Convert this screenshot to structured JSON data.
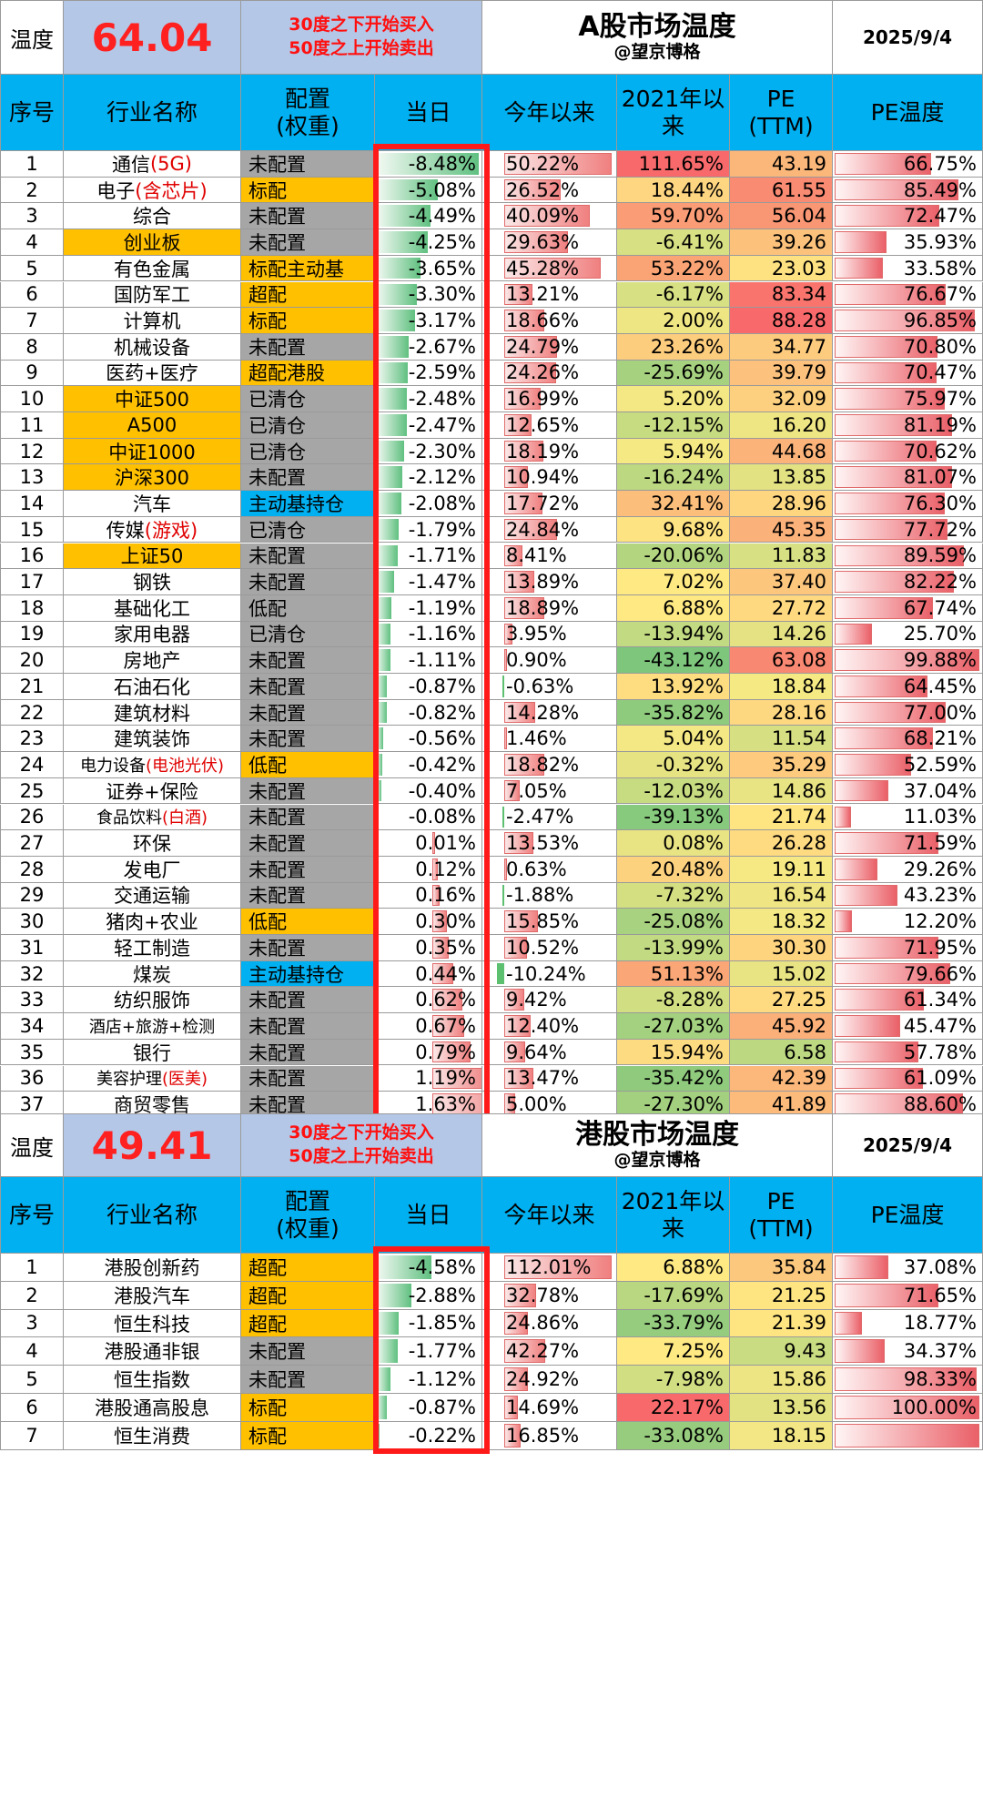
{
  "a_share": {
    "temp_label": "温度",
    "temp_value": "64.04",
    "note_line1": "30度之下开始买入",
    "note_line2": "50度之上开始卖出",
    "title": "A股市场温度",
    "subtitle": "@望京博格",
    "date": "2025/9/4",
    "headers": [
      "序号",
      "行业名称",
      "配置\n(权重)",
      "当日",
      "今年以来",
      "2021年以来",
      "PE\n(TTM)",
      "PE温度"
    ],
    "rows": [
      {
        "no": "1",
        "name": "通信",
        "name_red": "(5G)",
        "name_bg": "",
        "cfg": "未配置",
        "cfg_bg": "gray",
        "day": "-8.48%",
        "day_v": -8.48,
        "ytd": "50.22%",
        "ytd_v": 50.22,
        "since": "111.65%",
        "since_bg": "#f8696b",
        "pe": "43.19",
        "pe_bg": "#fbb77a",
        "pet": "66.75%",
        "pet_v": 66.75
      },
      {
        "no": "2",
        "name": "电子",
        "name_red": "(含芯片)",
        "name_bg": "",
        "cfg": "标配",
        "cfg_bg": "orange",
        "day": "-5.08%",
        "day_v": -5.08,
        "ytd": "26.52%",
        "ytd_v": 26.52,
        "since": "18.44%",
        "since_bg": "#fed580",
        "pe": "61.55",
        "pe_bg": "#f98b73",
        "pet": "85.49%",
        "pet_v": 85.49
      },
      {
        "no": "3",
        "name": "综合",
        "name_red": "",
        "name_bg": "",
        "cfg": "未配置",
        "cfg_bg": "gray",
        "day": "-4.49%",
        "day_v": -4.49,
        "ytd": "40.09%",
        "ytd_v": 40.09,
        "since": "59.70%",
        "since_bg": "#fa9c75",
        "pe": "56.04",
        "pe_bg": "#f99673",
        "pet": "72.47%",
        "pet_v": 72.47
      },
      {
        "no": "4",
        "name": "创业板",
        "name_red": "",
        "name_bg": "orange",
        "cfg": "未配置",
        "cfg_bg": "gray",
        "day": "-4.25%",
        "day_v": -4.25,
        "ytd": "29.63%",
        "ytd_v": 29.63,
        "since": "-6.41%",
        "since_bg": "#d7e082",
        "pe": "39.26",
        "pe_bg": "#fcc27c",
        "pet": "35.93%",
        "pet_v": 35.93
      },
      {
        "no": "5",
        "name": "有色金属",
        "name_red": "",
        "name_bg": "",
        "cfg": "标配主动基",
        "cfg_bg": "orange",
        "day": "-3.65%",
        "day_v": -3.65,
        "ytd": "45.28%",
        "ytd_v": 45.28,
        "since": "53.22%",
        "since_bg": "#faa476",
        "pe": "23.03",
        "pe_bg": "#fee282",
        "pet": "33.58%",
        "pet_v": 33.58
      },
      {
        "no": "6",
        "name": "国防军工",
        "name_red": "",
        "name_bg": "",
        "cfg": "超配",
        "cfg_bg": "orange",
        "day": "-3.30%",
        "day_v": -3.3,
        "ytd": "13.21%",
        "ytd_v": 13.21,
        "since": "-6.17%",
        "since_bg": "#d7e082",
        "pe": "83.34",
        "pe_bg": "#f8746d",
        "pet": "76.67%",
        "pet_v": 76.67
      },
      {
        "no": "7",
        "name": "计算机",
        "name_red": "",
        "name_bg": "",
        "cfg": "标配",
        "cfg_bg": "orange",
        "day": "-3.17%",
        "day_v": -3.17,
        "ytd": "18.66%",
        "ytd_v": 18.66,
        "since": "2.00%",
        "since_bg": "#eee583",
        "pe": "88.28",
        "pe_bg": "#f8696b",
        "pet": "96.85%",
        "pet_v": 96.85
      },
      {
        "no": "8",
        "name": "机械设备",
        "name_red": "",
        "name_bg": "",
        "cfg": "未配置",
        "cfg_bg": "gray",
        "day": "-2.67%",
        "day_v": -2.67,
        "ytd": "24.79%",
        "ytd_v": 24.79,
        "since": "23.26%",
        "since_bg": "#fdcd7e",
        "pe": "34.77",
        "pe_bg": "#fdcb7e",
        "pet": "70.80%",
        "pet_v": 70.8
      },
      {
        "no": "9",
        "name": "医药+医疗",
        "name_red": "",
        "name_bg": "",
        "cfg": "超配港股",
        "cfg_bg": "orange",
        "day": "-2.59%",
        "day_v": -2.59,
        "ytd": "24.26%",
        "ytd_v": 24.26,
        "since": "-25.69%",
        "since_bg": "#a6d27f",
        "pe": "39.79",
        "pe_bg": "#fcc17c",
        "pet": "70.47%",
        "pet_v": 70.47
      },
      {
        "no": "10",
        "name": "中证500",
        "name_red": "",
        "name_bg": "orange",
        "cfg": "已清仓",
        "cfg_bg": "gray",
        "day": "-2.48%",
        "day_v": -2.48,
        "ytd": "16.99%",
        "ytd_v": 16.99,
        "since": "5.20%",
        "since_bg": "#f4e884",
        "pe": "32.09",
        "pe_bg": "#fdd07f",
        "pet": "75.97%",
        "pet_v": 75.97
      },
      {
        "no": "11",
        "name": "A500",
        "name_red": "",
        "name_bg": "orange",
        "cfg": "已清仓",
        "cfg_bg": "gray",
        "day": "-2.47%",
        "day_v": -2.47,
        "ytd": "12.65%",
        "ytd_v": 12.65,
        "since": "-12.15%",
        "since_bg": "#c7db81",
        "pe": "16.20",
        "pe_bg": "#eee583",
        "pet": "81.19%",
        "pet_v": 81.19
      },
      {
        "no": "12",
        "name": "中证1000",
        "name_red": "",
        "name_bg": "orange",
        "cfg": "已清仓",
        "cfg_bg": "gray",
        "day": "-2.30%",
        "day_v": -2.3,
        "ytd": "18.19%",
        "ytd_v": 18.19,
        "since": "5.94%",
        "since_bg": "#f5e984",
        "pe": "44.68",
        "pe_bg": "#fbb37a",
        "pet": "70.62%",
        "pet_v": 70.62
      },
      {
        "no": "13",
        "name": "沪深300",
        "name_red": "",
        "name_bg": "orange",
        "cfg": "未配置",
        "cfg_bg": "gray",
        "day": "-2.12%",
        "day_v": -2.12,
        "ytd": "10.94%",
        "ytd_v": 10.94,
        "since": "-16.24%",
        "since_bg": "#bcd881",
        "pe": "13.85",
        "pe_bg": "#e3e283",
        "pet": "81.07%",
        "pet_v": 81.07
      },
      {
        "no": "14",
        "name": "汽车",
        "name_red": "",
        "name_bg": "",
        "cfg": "主动基持仓",
        "cfg_bg": "blue",
        "day": "-2.08%",
        "day_v": -2.08,
        "ytd": "17.72%",
        "ytd_v": 17.72,
        "since": "32.41%",
        "since_bg": "#fcbf7b",
        "pe": "28.96",
        "pe_bg": "#fed680",
        "pet": "76.30%",
        "pet_v": 76.3
      },
      {
        "no": "15",
        "name": "传媒",
        "name_red": "(游戏)",
        "name_bg": "",
        "cfg": "已清仓",
        "cfg_bg": "gray",
        "day": "-1.79%",
        "day_v": -1.79,
        "ytd": "24.84%",
        "ytd_v": 24.84,
        "since": "9.68%",
        "since_bg": "#fee382",
        "pe": "45.35",
        "pe_bg": "#fbb17a",
        "pet": "77.72%",
        "pet_v": 77.72
      },
      {
        "no": "16",
        "name": "上证50",
        "name_red": "",
        "name_bg": "orange",
        "cfg": "未配置",
        "cfg_bg": "gray",
        "day": "-1.71%",
        "day_v": -1.71,
        "ytd": "8.41%",
        "ytd_v": 8.41,
        "since": "-20.06%",
        "since_bg": "#b3d580",
        "pe": "11.83",
        "pe_bg": "#d7e082",
        "pet": "89.59%",
        "pet_v": 89.59
      },
      {
        "no": "17",
        "name": "钢铁",
        "name_red": "",
        "name_bg": "",
        "cfg": "未配置",
        "cfg_bg": "gray",
        "day": "-1.47%",
        "day_v": -1.47,
        "ytd": "13.89%",
        "ytd_v": 13.89,
        "since": "7.02%",
        "since_bg": "#fee983",
        "pe": "37.40",
        "pe_bg": "#fcc67d",
        "pet": "82.22%",
        "pet_v": 82.22
      },
      {
        "no": "18",
        "name": "基础化工",
        "name_red": "",
        "name_bg": "",
        "cfg": "低配",
        "cfg_bg": "gray",
        "day": "-1.19%",
        "day_v": -1.19,
        "ytd": "18.89%",
        "ytd_v": 18.89,
        "since": "6.88%",
        "since_bg": "#fee983",
        "pe": "27.72",
        "pe_bg": "#fed980",
        "pet": "67.74%",
        "pet_v": 67.74
      },
      {
        "no": "19",
        "name": "家用电器",
        "name_red": "",
        "name_bg": "",
        "cfg": "已清仓",
        "cfg_bg": "gray",
        "day": "-1.16%",
        "day_v": -1.16,
        "ytd": "3.95%",
        "ytd_v": 3.95,
        "since": "-13.94%",
        "since_bg": "#c2da81",
        "pe": "14.26",
        "pe_bg": "#e5e283",
        "pet": "25.70%",
        "pet_v": 25.7
      },
      {
        "no": "20",
        "name": "房地产",
        "name_red": "",
        "name_bg": "",
        "cfg": "未配置",
        "cfg_bg": "gray",
        "day": "-1.11%",
        "day_v": -1.11,
        "ytd": "0.90%",
        "ytd_v": 0.9,
        "since": "-43.12%",
        "since_bg": "#7dc67c",
        "pe": "63.08",
        "pe_bg": "#f98872",
        "pet": "99.88%",
        "pet_v": 99.88
      },
      {
        "no": "21",
        "name": "石油石化",
        "name_red": "",
        "name_bg": "",
        "cfg": "未配置",
        "cfg_bg": "gray",
        "day": "-0.87%",
        "day_v": -0.87,
        "ytd": "-0.63%",
        "ytd_v": -0.63,
        "since": "13.92%",
        "since_bg": "#fedd81",
        "pe": "18.84",
        "pe_bg": "#f5e984",
        "pet": "64.45%",
        "pet_v": 64.45
      },
      {
        "no": "22",
        "name": "建筑材料",
        "name_red": "",
        "name_bg": "",
        "cfg": "未配置",
        "cfg_bg": "gray",
        "day": "-0.82%",
        "day_v": -0.82,
        "ytd": "14.28%",
        "ytd_v": 14.28,
        "since": "-35.82%",
        "since_bg": "#8fcb7d",
        "pe": "28.16",
        "pe_bg": "#fed880",
        "pet": "77.00%",
        "pet_v": 77.0
      },
      {
        "no": "23",
        "name": "建筑装饰",
        "name_red": "",
        "name_bg": "",
        "cfg": "未配置",
        "cfg_bg": "gray",
        "day": "-0.56%",
        "day_v": -0.56,
        "ytd": "1.46%",
        "ytd_v": 1.46,
        "since": "5.04%",
        "since_bg": "#f4e884",
        "pe": "11.54",
        "pe_bg": "#d6e082",
        "pet": "68.21%",
        "pet_v": 68.21
      },
      {
        "no": "24",
        "name": "电力设备",
        "name_red": "(电池光伏)",
        "name_bg": "",
        "cfg": "低配",
        "cfg_bg": "orange",
        "day": "-0.42%",
        "day_v": -0.42,
        "ytd": "18.82%",
        "ytd_v": 18.82,
        "since": "-0.32%",
        "since_bg": "#e6e383",
        "pe": "35.29",
        "pe_bg": "#fdca7e",
        "pet": "52.59%",
        "pet_v": 52.59
      },
      {
        "no": "25",
        "name": "证券+保险",
        "name_red": "",
        "name_bg": "",
        "cfg": "未配置",
        "cfg_bg": "gray",
        "day": "-0.40%",
        "day_v": -0.4,
        "ytd": "7.05%",
        "ytd_v": 7.05,
        "since": "-12.03%",
        "since_bg": "#c7db81",
        "pe": "14.86",
        "pe_bg": "#e8e383",
        "pet": "37.04%",
        "pet_v": 37.04
      },
      {
        "no": "26",
        "name": "食品饮料",
        "name_red": "(白酒)",
        "name_bg": "",
        "cfg": "未配置",
        "cfg_bg": "gray",
        "day": "-0.08%",
        "day_v": -0.08,
        "ytd": "-2.47%",
        "ytd_v": -2.47,
        "since": "-39.13%",
        "since_bg": "#87c97d",
        "pe": "21.74",
        "pe_bg": "#fee582",
        "pet": "11.03%",
        "pet_v": 11.03
      },
      {
        "no": "27",
        "name": "环保",
        "name_red": "",
        "name_bg": "",
        "cfg": "未配置",
        "cfg_bg": "gray",
        "day": "0.01%",
        "day_v": 0.01,
        "ytd": "13.53%",
        "ytd_v": 13.53,
        "since": "0.08%",
        "since_bg": "#e8e483",
        "pe": "26.28",
        "pe_bg": "#feda81",
        "pet": "71.59%",
        "pet_v": 71.59
      },
      {
        "no": "28",
        "name": "发电厂",
        "name_red": "",
        "name_bg": "",
        "cfg": "未配置",
        "cfg_bg": "gray",
        "day": "0.12%",
        "day_v": 0.12,
        "ytd": "0.63%",
        "ytd_v": 0.63,
        "since": "20.48%",
        "since_bg": "#fdd27f",
        "pe": "19.11",
        "pe_bg": "#f6e984",
        "pet": "29.26%",
        "pet_v": 29.26
      },
      {
        "no": "29",
        "name": "交通运输",
        "name_red": "",
        "name_bg": "",
        "cfg": "未配置",
        "cfg_bg": "gray",
        "day": "0.16%",
        "day_v": 0.16,
        "ytd": "-1.88%",
        "ytd_v": -1.88,
        "since": "-7.32%",
        "since_bg": "#d4df82",
        "pe": "16.54",
        "pe_bg": "#f0e583",
        "pet": "43.23%",
        "pet_v": 43.23
      },
      {
        "no": "30",
        "name": "猪肉+农业",
        "name_red": "",
        "name_bg": "",
        "cfg": "低配",
        "cfg_bg": "orange",
        "day": "0.30%",
        "day_v": 0.3,
        "ytd": "15.85%",
        "ytd_v": 15.85,
        "since": "-25.08%",
        "since_bg": "#a8d27f",
        "pe": "18.32",
        "pe_bg": "#f3e884",
        "pet": "12.20%",
        "pet_v": 12.2
      },
      {
        "no": "31",
        "name": "轻工制造",
        "name_red": "",
        "name_bg": "",
        "cfg": "未配置",
        "cfg_bg": "gray",
        "day": "0.35%",
        "day_v": 0.35,
        "ytd": "10.52%",
        "ytd_v": 10.52,
        "since": "-13.99%",
        "since_bg": "#c2da81",
        "pe": "30.30",
        "pe_bg": "#fed47f",
        "pet": "71.95%",
        "pet_v": 71.95
      },
      {
        "no": "32",
        "name": "煤炭",
        "name_red": "",
        "name_bg": "",
        "cfg": "主动基持仓",
        "cfg_bg": "blue",
        "day": "0.44%",
        "day_v": 0.44,
        "ytd": "-10.24%",
        "ytd_v": -10.24,
        "since": "51.13%",
        "since_bg": "#faa676",
        "pe": "15.02",
        "pe_bg": "#e9e483",
        "pet": "79.66%",
        "pet_v": 79.66
      },
      {
        "no": "33",
        "name": "纺织服饰",
        "name_red": "",
        "name_bg": "",
        "cfg": "未配置",
        "cfg_bg": "gray",
        "day": "0.62%",
        "day_v": 0.62,
        "ytd": "9.42%",
        "ytd_v": 9.42,
        "since": "-8.28%",
        "since_bg": "#d1de82",
        "pe": "27.25",
        "pe_bg": "#feda81",
        "pet": "61.34%",
        "pet_v": 61.34
      },
      {
        "no": "34",
        "name": "酒店+旅游+检测",
        "name_red": "",
        "name_bg": "",
        "cfg": "未配置",
        "cfg_bg": "gray",
        "day": "0.67%",
        "day_v": 0.67,
        "ytd": "12.40%",
        "ytd_v": 12.4,
        "since": "-27.03%",
        "since_bg": "#a3d17f",
        "pe": "45.92",
        "pe_bg": "#fbb07a",
        "pet": "45.47%",
        "pet_v": 45.47
      },
      {
        "no": "35",
        "name": "银行",
        "name_red": "",
        "name_bg": "",
        "cfg": "未配置",
        "cfg_bg": "gray",
        "day": "0.79%",
        "day_v": 0.79,
        "ytd": "9.64%",
        "ytd_v": 9.64,
        "since": "15.94%",
        "since_bg": "#fddb81",
        "pe": "6.58",
        "pe_bg": "#bcd881",
        "pet": "57.78%",
        "pet_v": 57.78
      },
      {
        "no": "36",
        "name": "美容护理",
        "name_red": "(医美)",
        "name_bg": "",
        "cfg": "未配置",
        "cfg_bg": "gray",
        "day": "1.19%",
        "day_v": 1.19,
        "ytd": "13.47%",
        "ytd_v": 13.47,
        "since": "-35.42%",
        "since_bg": "#90cb7d",
        "pe": "42.39",
        "pe_bg": "#fcb87b",
        "pet": "61.09%",
        "pet_v": 61.09
      },
      {
        "no": "37",
        "name": "商贸零售",
        "name_red": "",
        "name_bg": "",
        "cfg": "未配置",
        "cfg_bg": "gray",
        "day": "1.63%",
        "day_v": 1.63,
        "ytd": "5.00%",
        "ytd_v": 5.0,
        "since": "-27.30%",
        "since_bg": "#a2d07f",
        "pe": "41.89",
        "pe_bg": "#fcba7b",
        "pet": "88.60%",
        "pet_v": 88.6
      }
    ]
  },
  "hk_share": {
    "temp_label": "温度",
    "temp_value": "49.41",
    "note_line1": "30度之下开始买入",
    "note_line2": "50度之上开始卖出",
    "title": "港股市场温度",
    "subtitle": "@望京博格",
    "date": "2025/9/4",
    "headers": [
      "序号",
      "行业名称",
      "配置\n(权重)",
      "当日",
      "今年以来",
      "2021年以来",
      "PE\n(TTM)",
      "PE温度"
    ],
    "rows": [
      {
        "no": "1",
        "name": "港股创新药",
        "name_red": "",
        "name_bg": "",
        "cfg": "超配",
        "cfg_bg": "orange",
        "day": "-4.58%",
        "day_v": -4.58,
        "ytd": "112.01%",
        "ytd_v": 112.01,
        "since": "6.88%",
        "since_bg": "#fee983",
        "pe": "35.84",
        "pe_bg": "#fcc87d",
        "pet": "37.08%",
        "pet_v": 37.08
      },
      {
        "no": "2",
        "name": "港股汽车",
        "name_red": "",
        "name_bg": "",
        "cfg": "超配",
        "cfg_bg": "orange",
        "day": "-2.88%",
        "day_v": -2.88,
        "ytd": "32.78%",
        "ytd_v": 32.78,
        "since": "-17.69%",
        "since_bg": "#b9d780",
        "pe": "21.25",
        "pe_bg": "#fee582",
        "pet": "71.65%",
        "pet_v": 71.65
      },
      {
        "no": "3",
        "name": "恒生科技",
        "name_red": "",
        "name_bg": "",
        "cfg": "超配",
        "cfg_bg": "orange",
        "day": "-1.85%",
        "day_v": -1.85,
        "ytd": "24.86%",
        "ytd_v": 24.86,
        "since": "-33.79%",
        "since_bg": "#95cc7e",
        "pe": "21.39",
        "pe_bg": "#fee582",
        "pet": "18.77%",
        "pet_v": 18.77
      },
      {
        "no": "4",
        "name": "港股通非银",
        "name_red": "",
        "name_bg": "",
        "cfg": "未配置",
        "cfg_bg": "gray",
        "day": "-1.77%",
        "day_v": -1.77,
        "ytd": "42.27%",
        "ytd_v": 42.27,
        "since": "7.25%",
        "since_bg": "#fee983",
        "pe": "9.43",
        "pe_bg": "#cadc82",
        "pet": "34.37%",
        "pet_v": 34.37
      },
      {
        "no": "5",
        "name": "恒生指数",
        "name_red": "",
        "name_bg": "",
        "cfg": "未配置",
        "cfg_bg": "gray",
        "day": "-1.12%",
        "day_v": -1.12,
        "ytd": "24.92%",
        "ytd_v": 24.92,
        "since": "-7.98%",
        "since_bg": "#d2de82",
        "pe": "15.86",
        "pe_bg": "#ede583",
        "pet": "98.33%",
        "pet_v": 98.33
      },
      {
        "no": "6",
        "name": "港股通高股息",
        "name_red": "",
        "name_bg": "",
        "cfg": "标配",
        "cfg_bg": "orange",
        "day": "-0.87%",
        "day_v": -0.87,
        "ytd": "14.69%",
        "ytd_v": 14.69,
        "since": "22.17%",
        "since_bg": "#f8696b",
        "pe": "13.56",
        "pe_bg": "#e2e283",
        "pet": "100.00%",
        "pet_v": 100.0
      },
      {
        "no": "7",
        "name": "恒生消费",
        "name_red": "",
        "name_bg": "",
        "cfg": "标配",
        "cfg_bg": "orange",
        "day": "-0.22%",
        "day_v": -0.22,
        "ytd": "16.85%",
        "ytd_v": 16.85,
        "since": "-33.08%",
        "since_bg": "#97cc7e",
        "pe": "18.15",
        "pe_bg": "#f2e784",
        "pet": "",
        "pet_v": 100.0
      }
    ]
  },
  "colors": {
    "header": "#00b0f0",
    "orange": "#ffc000",
    "gray": "#a6a6a6",
    "blue": "#00b0f0",
    "temp_bg": "#b4c7e7",
    "accent_red": "#ff1a1a"
  }
}
